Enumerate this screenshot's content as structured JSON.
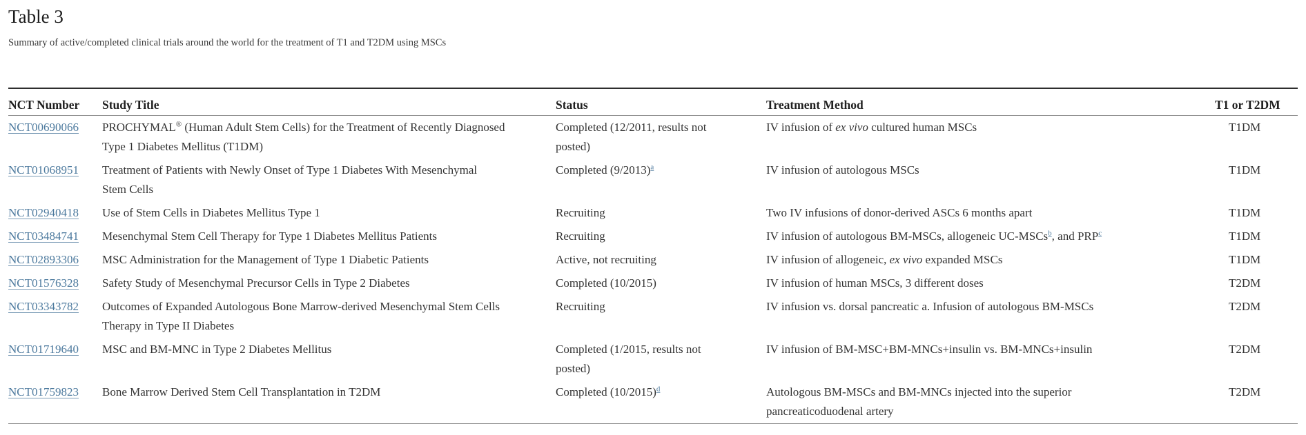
{
  "page": {
    "title": "Table 3",
    "subtitle": "Summary of active/completed clinical trials around the world for the treatment of T1 and T2DM using MSCs"
  },
  "colors": {
    "link": "#4d7a9e",
    "body_text": "#333333",
    "heading_text": "#1f1f1f",
    "rule_dark": "#2e2e2e",
    "rule_light": "#8e8e8e"
  },
  "table": {
    "headers": [
      {
        "key": "nct",
        "label": "NCT Number"
      },
      {
        "key": "title",
        "label": "Study Title"
      },
      {
        "key": "status",
        "label": "Status"
      },
      {
        "key": "treatment",
        "label": "Treatment Method"
      },
      {
        "key": "type",
        "label": "T1 or T2DM"
      }
    ],
    "rows": [
      {
        "nct": "NCT00690066",
        "title": [
          {
            "t": "PROCHYMAL"
          },
          {
            "t": "®",
            "sup": true
          },
          {
            "t": " (Human Adult Stem Cells) for the Treatment of Recently Diagnosed"
          },
          {
            "br": true
          },
          {
            "t": "Type 1 Diabetes Mellitus (T1DM)"
          }
        ],
        "status": [
          {
            "t": "Completed (12/2011, results not"
          },
          {
            "br": true
          },
          {
            "t": "posted)"
          }
        ],
        "treatment": [
          {
            "t": "IV infusion of "
          },
          {
            "t": "ex vivo",
            "i": true
          },
          {
            "t": " cultured human MSCs"
          }
        ],
        "type": "T1DM"
      },
      {
        "nct": "NCT01068951",
        "title": [
          {
            "t": "Treatment of Patients with Newly Onset of Type 1 Diabetes With Mesenchymal"
          },
          {
            "br": true
          },
          {
            "t": "Stem Cells"
          }
        ],
        "status": [
          {
            "t": "Completed (9/2013)"
          },
          {
            "t": "a",
            "sup": true,
            "link": true
          }
        ],
        "treatment": [
          {
            "t": "IV infusion of autologous MSCs"
          }
        ],
        "type": "T1DM"
      },
      {
        "nct": "NCT02940418",
        "title": [
          {
            "t": "Use of Stem Cells in Diabetes Mellitus Type 1"
          }
        ],
        "status": [
          {
            "t": "Recruiting"
          }
        ],
        "treatment": [
          {
            "t": "Two IV infusions of donor-derived ASCs 6 months apart"
          }
        ],
        "type": "T1DM"
      },
      {
        "nct": "NCT03484741",
        "title": [
          {
            "t": "Mesenchymal Stem Cell Therapy for Type 1 Diabetes Mellitus Patients"
          }
        ],
        "status": [
          {
            "t": "Recruiting"
          }
        ],
        "treatment": [
          {
            "t": "IV infusion of autologous BM-MSCs, allogeneic UC-MSCs"
          },
          {
            "t": "b",
            "sup": true,
            "link": true
          },
          {
            "t": ", and PRP"
          },
          {
            "t": "c",
            "sup": true,
            "link": true
          }
        ],
        "type": "T1DM"
      },
      {
        "nct": "NCT02893306",
        "title": [
          {
            "t": "MSC Administration for the Management of Type 1 Diabetic Patients"
          }
        ],
        "status": [
          {
            "t": "Active, not recruiting"
          }
        ],
        "treatment": [
          {
            "t": "IV infusion of allogeneic, "
          },
          {
            "t": "ex vivo",
            "i": true
          },
          {
            "t": " expanded MSCs"
          }
        ],
        "type": "T1DM"
      },
      {
        "nct": "NCT01576328",
        "title": [
          {
            "t": "Safety Study of Mesenchymal Precursor Cells in Type 2 Diabetes"
          }
        ],
        "status": [
          {
            "t": "Completed (10/2015)"
          }
        ],
        "treatment": [
          {
            "t": "IV infusion of human MSCs, 3 different doses"
          }
        ],
        "type": "T2DM"
      },
      {
        "nct": "NCT03343782",
        "title": [
          {
            "t": "Outcomes of Expanded Autologous Bone Marrow-derived Mesenchymal Stem Cells"
          },
          {
            "br": true
          },
          {
            "t": "Therapy in Type II Diabetes"
          }
        ],
        "status": [
          {
            "t": "Recruiting"
          }
        ],
        "treatment": [
          {
            "t": "IV infusion vs. dorsal pancreatic a. Infusion of autologous BM-MSCs"
          }
        ],
        "type": "T2DM"
      },
      {
        "nct": "NCT01719640",
        "title": [
          {
            "t": "MSC and BM-MNC in Type 2 Diabetes Mellitus"
          }
        ],
        "status": [
          {
            "t": "Completed (1/2015, results not"
          },
          {
            "br": true
          },
          {
            "t": "posted)"
          }
        ],
        "treatment": [
          {
            "t": "IV infusion of BM-MSC+BM-MNCs+insulin vs. BM-MNCs+insulin"
          }
        ],
        "type": "T2DM"
      },
      {
        "nct": "NCT01759823",
        "title": [
          {
            "t": "Bone Marrow Derived Stem Cell Transplantation in T2DM"
          }
        ],
        "status": [
          {
            "t": "Completed (10/2015)"
          },
          {
            "t": "d",
            "sup": true,
            "link": true
          }
        ],
        "treatment": [
          {
            "t": "Autologous BM-MSCs and BM-MNCs injected into the superior"
          },
          {
            "br": true
          },
          {
            "t": "pancreaticoduodenal artery"
          }
        ],
        "type": "T2DM"
      }
    ]
  }
}
